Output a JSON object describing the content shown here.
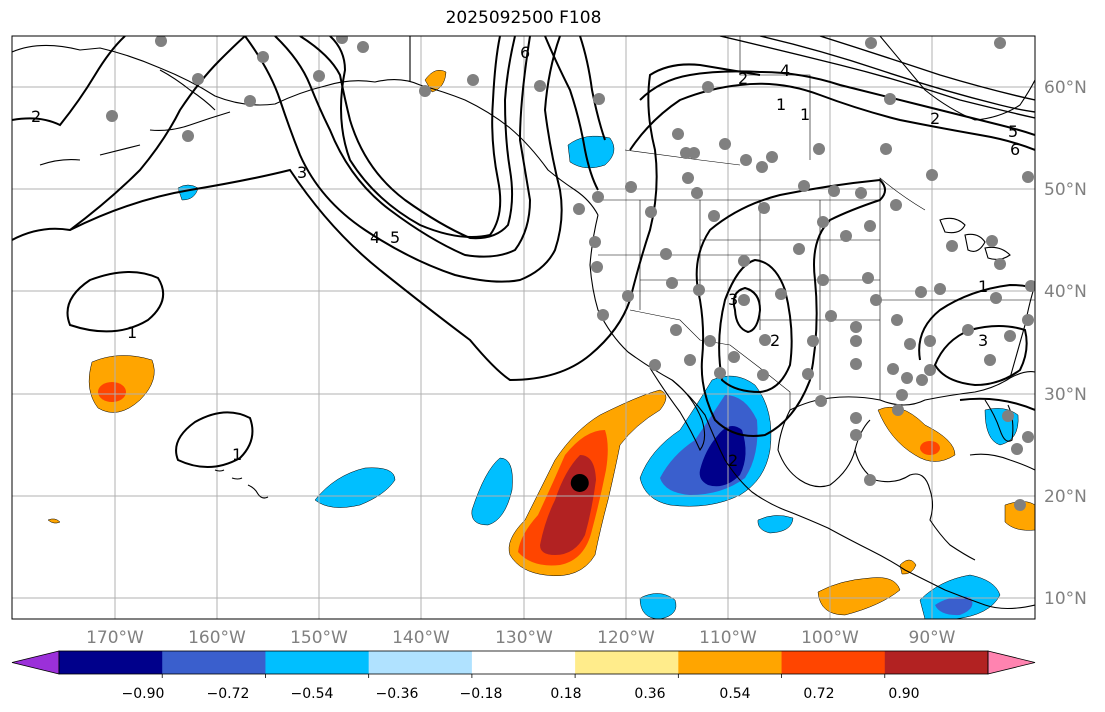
{
  "title": "2025092500 F108",
  "map": {
    "lon_labels": [
      "170°W",
      "160°W",
      "150°W",
      "140°W",
      "130°W",
      "120°W",
      "110°W",
      "100°W",
      "90°W"
    ],
    "lat_labels": [
      "60°N",
      "50°N",
      "40°N",
      "30°N",
      "20°N",
      "10°N"
    ],
    "lon_range": [
      -180,
      -80
    ],
    "lat_range": [
      8,
      65
    ],
    "grid": true,
    "contour_labels": [
      "2",
      "1",
      "1",
      "3",
      "4",
      "5",
      "6",
      "2",
      "4",
      "1",
      "1",
      "2",
      "5",
      "6",
      "2",
      "3",
      "2",
      "1",
      "3"
    ],
    "storm_marker": {
      "lon": -124.5,
      "lat": 21.3
    }
  },
  "colorbar": {
    "tick_labels": [
      "−0.90",
      "−0.72",
      "−0.54",
      "−0.36",
      "−0.18",
      "0.18",
      "0.36",
      "0.54",
      "0.72",
      "0.90"
    ],
    "colors": [
      "#9b30d9",
      "#00008b",
      "#3a5fcd",
      "#00bfff",
      "#b0e2ff",
      "#ffffff",
      "#ffec8b",
      "#ffa500",
      "#ff4500",
      "#b22222",
      "#ff83b0"
    ]
  }
}
